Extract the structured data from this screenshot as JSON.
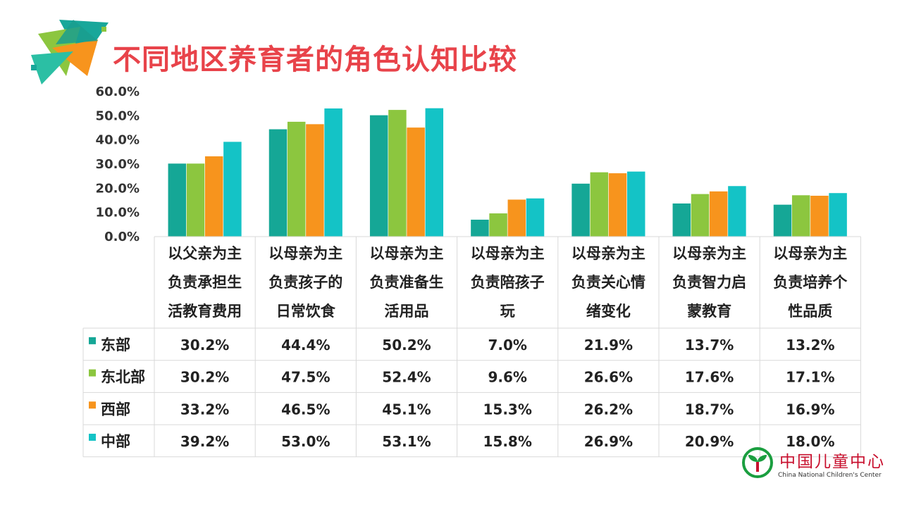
{
  "page": {
    "title": "不同地区养育者的角色认知比较"
  },
  "brand": {
    "name": "中国儿童中心",
    "sub": "China National Children's Center"
  },
  "colors": {
    "title": "#e8434a",
    "east": "#15a796",
    "northeast": "#8cc63f",
    "west": "#f7941d",
    "central": "#14c3c6"
  },
  "chart_data": {
    "type": "bar",
    "title": "不同地区养育者的角色认知比较",
    "xlabel": "",
    "ylabel": "",
    "ylim": [
      0,
      60
    ],
    "yticks": [
      "0.0%",
      "10.0%",
      "20.0%",
      "30.0%",
      "40.0%",
      "50.0%",
      "60.0%"
    ],
    "grid": false,
    "legend": "table-left",
    "categories": [
      [
        "以父亲为主",
        "负责承担生",
        "活教育费用"
      ],
      [
        "以母亲为主",
        "负责孩子的",
        "日常饮食"
      ],
      [
        "以母亲为主",
        "负责准备生",
        "活用品"
      ],
      [
        "以母亲为主",
        "负责陪孩子",
        "玩"
      ],
      [
        "以母亲为主",
        "负责关心情",
        "绪变化"
      ],
      [
        "以母亲为主",
        "负责智力启",
        "蒙教育"
      ],
      [
        "以母亲为主",
        "负责培养个",
        "性品质"
      ]
    ],
    "series": [
      {
        "name": "东部",
        "color": "#15a796",
        "values": [
          30.2,
          44.4,
          50.2,
          7.0,
          21.9,
          13.7,
          13.2
        ],
        "labels": [
          "30.2%",
          "44.4%",
          "50.2%",
          "7.0%",
          "21.9%",
          "13.7%",
          "13.2%"
        ]
      },
      {
        "name": "东北部",
        "color": "#8cc63f",
        "values": [
          30.2,
          47.5,
          52.4,
          9.6,
          26.6,
          17.6,
          17.1
        ],
        "labels": [
          "30.2%",
          "47.5%",
          "52.4%",
          "9.6%",
          "26.6%",
          "17.6%",
          "17.1%"
        ]
      },
      {
        "name": "西部",
        "color": "#f7941d",
        "values": [
          33.2,
          46.5,
          45.1,
          15.3,
          26.2,
          18.7,
          16.9
        ],
        "labels": [
          "33.2%",
          "46.5%",
          "45.1%",
          "15.3%",
          "26.2%",
          "18.7%",
          "16.9%"
        ]
      },
      {
        "name": "中部",
        "color": "#14c3c6",
        "values": [
          39.2,
          53.0,
          53.1,
          15.8,
          26.9,
          20.9,
          18.0
        ],
        "labels": [
          "39.2%",
          "53.0%",
          "53.1%",
          "15.8%",
          "26.9%",
          "20.9%",
          "18.0%"
        ]
      }
    ]
  }
}
